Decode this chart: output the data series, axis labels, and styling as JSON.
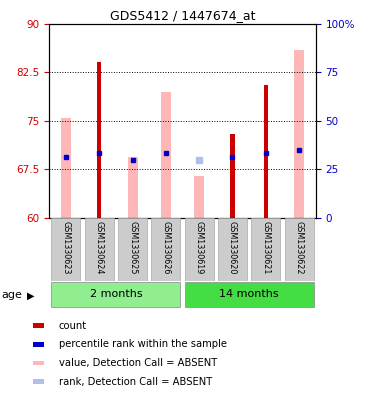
{
  "title": "GDS5412 / 1447674_at",
  "samples": [
    "GSM1330623",
    "GSM1330624",
    "GSM1330625",
    "GSM1330626",
    "GSM1330619",
    "GSM1330620",
    "GSM1330621",
    "GSM1330622"
  ],
  "groups": [
    "2 months",
    "2 months",
    "2 months",
    "2 months",
    "14 months",
    "14 months",
    "14 months",
    "14 months"
  ],
  "ylim_left": [
    60,
    90
  ],
  "ylim_right": [
    0,
    100
  ],
  "yticks_left": [
    60,
    67.5,
    75,
    82.5,
    90
  ],
  "yticks_right": [
    0,
    25,
    50,
    75,
    100
  ],
  "ytick_labels_left": [
    "60",
    "67.5",
    "75",
    "82.5",
    "90"
  ],
  "ytick_labels_right": [
    "0",
    "25",
    "50",
    "75",
    "100%"
  ],
  "red_bars": {
    "GSM1330623": null,
    "GSM1330624": 84.0,
    "GSM1330625": null,
    "GSM1330626": null,
    "GSM1330619": null,
    "GSM1330620": 73.0,
    "GSM1330621": 80.5,
    "GSM1330622": null
  },
  "pink_bars": {
    "GSM1330623": 75.5,
    "GSM1330624": null,
    "GSM1330625": 69.5,
    "GSM1330626": 79.5,
    "GSM1330619": 66.5,
    "GSM1330620": null,
    "GSM1330621": null,
    "GSM1330622": 86.0
  },
  "blue_squares": {
    "GSM1330623": 69.5,
    "GSM1330624": 70.0,
    "GSM1330625": 69.0,
    "GSM1330626": 70.0,
    "GSM1330619": null,
    "GSM1330620": 69.5,
    "GSM1330621": 70.0,
    "GSM1330622": 70.5
  },
  "light_blue_squares": {
    "GSM1330623": null,
    "GSM1330624": null,
    "GSM1330625": null,
    "GSM1330626": null,
    "GSM1330619": 69.0,
    "GSM1330620": null,
    "GSM1330621": null,
    "GSM1330622": null
  },
  "red_bar_color": "#cc0000",
  "pink_bar_color": "#ffb6b6",
  "blue_sq_color": "#0000cc",
  "light_blue_sq_color": "#b0c0e8",
  "left_axis_color": "#cc0000",
  "right_axis_color": "#0000cc",
  "sample_bg_color": "#cccccc",
  "group_colors": {
    "2 months": "#90EE90",
    "14 months": "#44dd44"
  },
  "legend": [
    {
      "label": "count",
      "color": "#cc0000"
    },
    {
      "label": "percentile rank within the sample",
      "color": "#0000cc"
    },
    {
      "label": "value, Detection Call = ABSENT",
      "color": "#ffb6b6"
    },
    {
      "label": "rank, Detection Call = ABSENT",
      "color": "#b0c0e8"
    }
  ]
}
